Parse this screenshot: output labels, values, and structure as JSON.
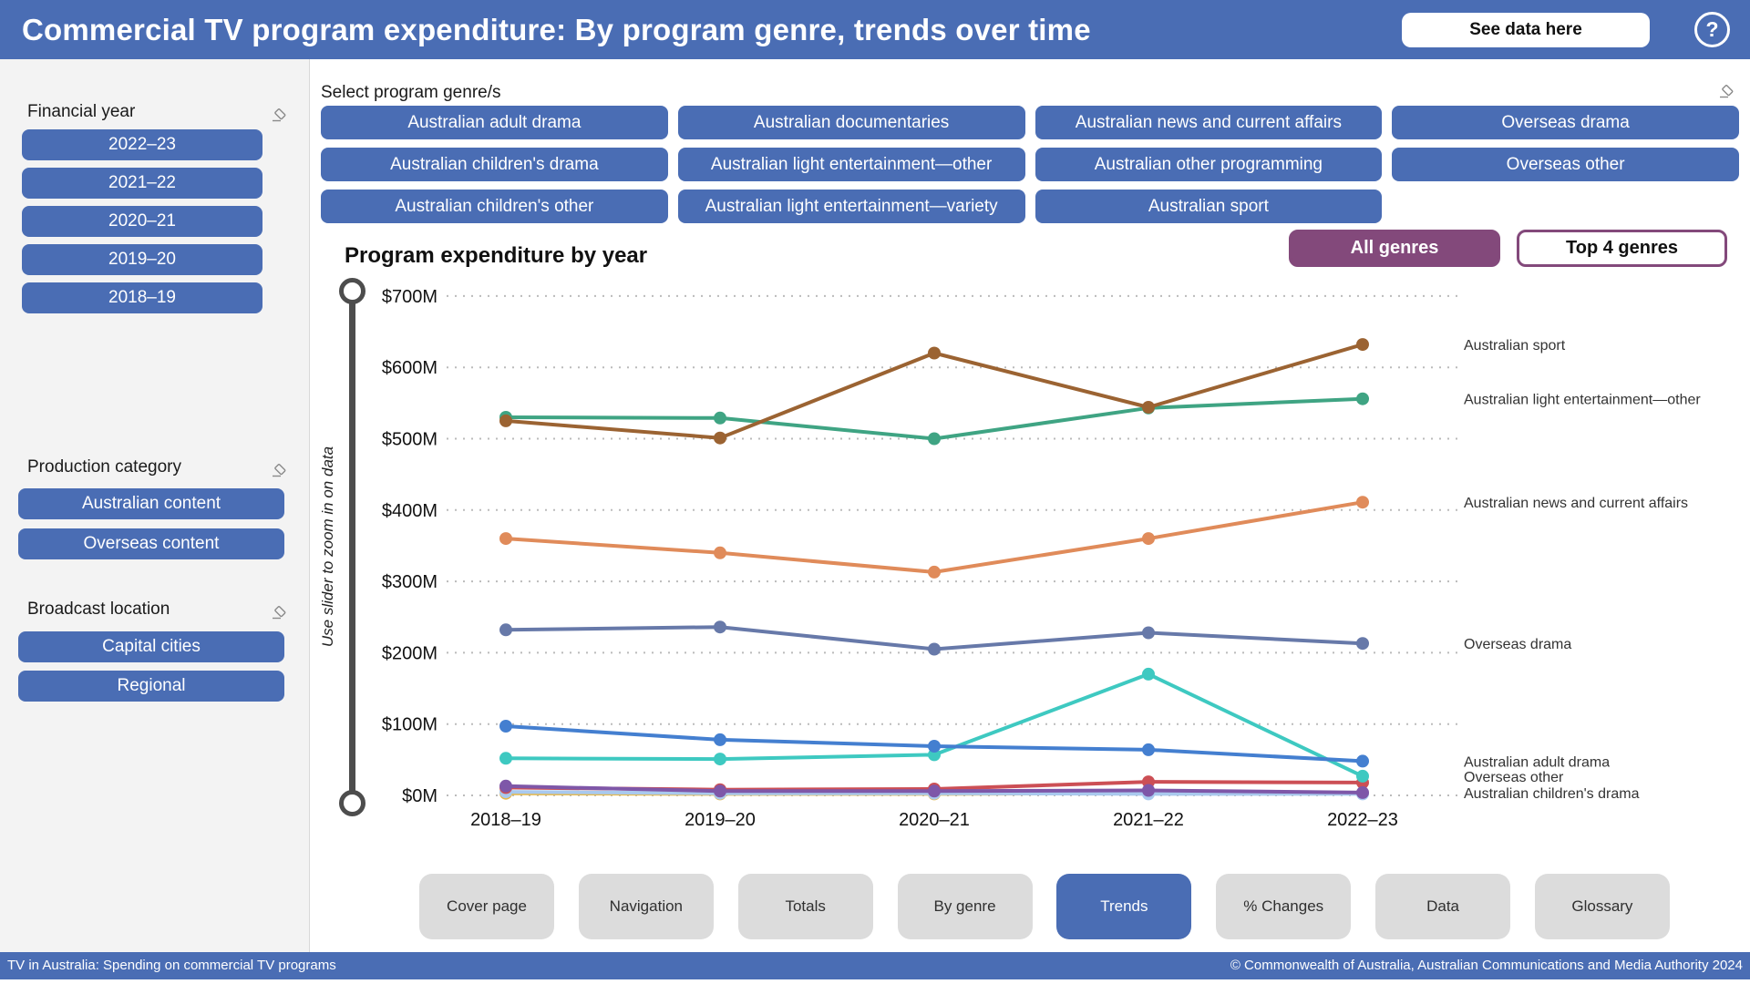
{
  "header": {
    "title": "Commercial TV program expenditure: By program genre, trends over time",
    "see_data_label": "See data here",
    "help_glyph": "?"
  },
  "sidebar": {
    "financial_year": {
      "label": "Financial year",
      "options": [
        "2022–23",
        "2021–22",
        "2020–21",
        "2019–20",
        "2018–19"
      ]
    },
    "production_category": {
      "label": "Production category",
      "options": [
        "Australian content",
        "Overseas content"
      ]
    },
    "broadcast_location": {
      "label": "Broadcast location",
      "options": [
        "Capital cities",
        "Regional"
      ]
    }
  },
  "genre_filter": {
    "label": "Select program genre/s",
    "genres": [
      "Australian adult drama",
      "Australian documentaries",
      "Australian news and current affairs",
      "Overseas drama",
      "Australian children's drama",
      "Australian light entertainment—other",
      "Australian other programming",
      "Overseas other",
      "Australian children's other",
      "Australian light entertainment—variety",
      "Australian sport"
    ],
    "all_genres_label": "All genres",
    "top4_label": "Top 4 genres"
  },
  "chart_data": {
    "type": "line",
    "title": "Program expenditure by year",
    "slider_hint": "Use slider to zoom in on data",
    "x_categories": [
      "2018–19",
      "2019–20",
      "2020–21",
      "2021–22",
      "2022–23"
    ],
    "ylim": [
      0,
      700
    ],
    "ytick_step": 100,
    "ytick_labels": [
      "$0M",
      "$100M",
      "$200M",
      "$300M",
      "$400M",
      "$500M",
      "$600M",
      "$700M"
    ],
    "grid": "dotted",
    "legend_position": "right-edge-labels",
    "series": [
      {
        "name": "unlabelled minor genre (gold line)",
        "label": "",
        "labeled": false,
        "color": "#e5b94e",
        "values": [
          3,
          2,
          2,
          3,
          3
        ]
      },
      {
        "name": "unlabelled minor genre (light-blue line)",
        "label": "",
        "labeled": false,
        "color": "#a9c9ee",
        "values": [
          5,
          3,
          3,
          2,
          2
        ]
      },
      {
        "name": "unlabelled minor genre (red line)",
        "label": "",
        "labeled": false,
        "color": "#cc4f55",
        "values": [
          11,
          8,
          9,
          19,
          18
        ]
      },
      {
        "name": "Australian children's drama",
        "label": "Australian children's drama",
        "labeled": true,
        "color": "#7e57a8",
        "values": [
          13,
          6,
          6,
          7,
          4
        ]
      },
      {
        "name": "Overseas other",
        "label": "Overseas other",
        "labeled": true,
        "color": "#3ec9c1",
        "values": [
          52,
          51,
          57,
          170,
          27
        ]
      },
      {
        "name": "Australian adult drama",
        "label": "Australian adult drama",
        "labeled": true,
        "color": "#447fd0",
        "values": [
          97,
          78,
          69,
          64,
          48
        ]
      },
      {
        "name": "Overseas drama",
        "label": "Overseas drama",
        "labeled": true,
        "color": "#6779a9",
        "values": [
          232,
          236,
          205,
          228,
          213
        ]
      },
      {
        "name": "Australian news and current affairs",
        "label": "Australian news and current affairs",
        "labeled": true,
        "color": "#e08b5a",
        "values": [
          360,
          340,
          313,
          360,
          411
        ]
      },
      {
        "name": "Australian light entertainment—other",
        "label": "Australian light entertainment—other",
        "labeled": true,
        "color": "#3fa483",
        "values": [
          530,
          529,
          500,
          543,
          556
        ]
      },
      {
        "name": "Australian sport",
        "label": "Australian sport",
        "labeled": true,
        "color": "#9b6332",
        "values": [
          525,
          501,
          620,
          544,
          632
        ]
      }
    ]
  },
  "tabs": {
    "items": [
      "Cover page",
      "Navigation",
      "Totals",
      "By genre",
      "Trends",
      "% Changes",
      "Data",
      "Glossary"
    ],
    "active": "Trends"
  },
  "footer": {
    "left": "TV in Australia: Spending on commercial TV programs",
    "right": "© Commonwealth of Australia, Australian Communications and Media Authority 2024"
  },
  "colors": {
    "accent_blue": "#4a6db4",
    "accent_purple": "#83497b",
    "tab_gray": "#dcdcdc",
    "gridline": "#bbbbbb",
    "slider": "#4d4d4d"
  }
}
